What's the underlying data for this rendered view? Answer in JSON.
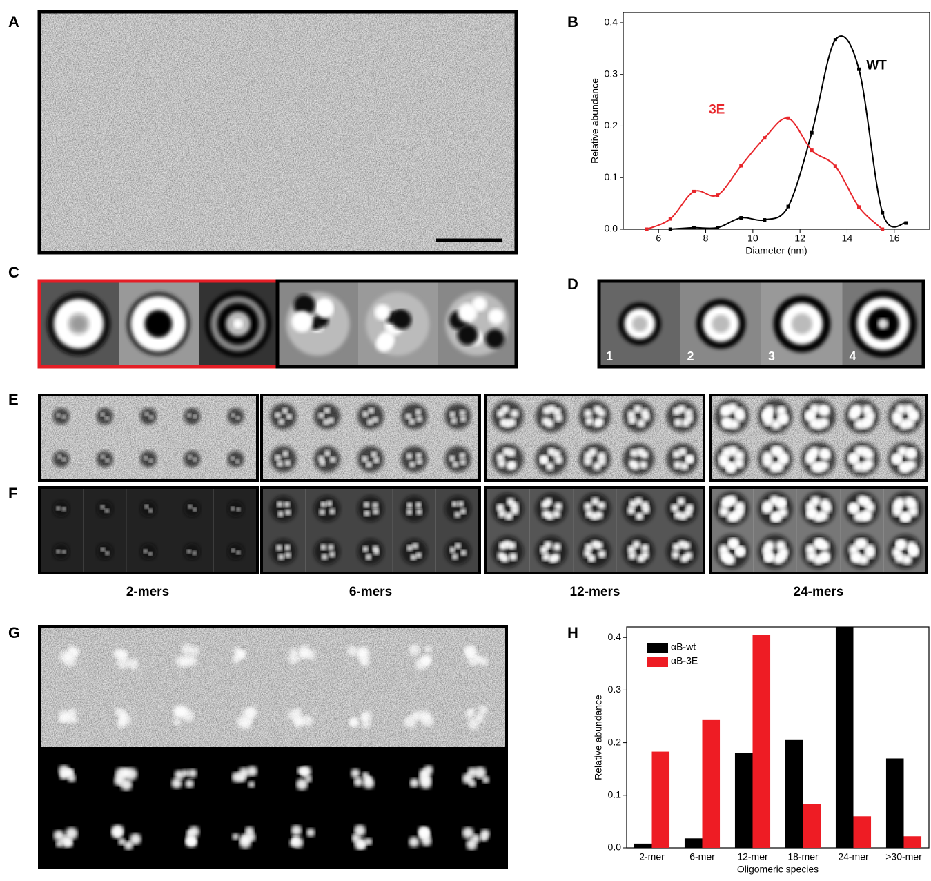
{
  "panel_labels": [
    "A",
    "B",
    "C",
    "D",
    "E",
    "F",
    "G",
    "H"
  ],
  "class_numbers": [
    "1",
    "2",
    "3",
    "4"
  ],
  "oligomer_labels": [
    "2-mers",
    "6-mers",
    "12-mers",
    "24-mers"
  ],
  "chart_data": [
    {
      "type": "line",
      "x_label": "Diameter (nm)",
      "y_label": "Relative abundance",
      "x": [
        5.5,
        6.5,
        7.5,
        8.5,
        9.5,
        10.5,
        11.5,
        12.5,
        13.5,
        14.5,
        15.5,
        16.5
      ],
      "series": [
        {
          "name": "WT",
          "color": "#000000",
          "values": [
            null,
            0,
            0.003,
            0.003,
            0.022,
            0.018,
            0.044,
            0.187,
            0.367,
            0.31,
            0.032,
            0.012
          ]
        },
        {
          "name": "3E",
          "color": "#e8262b",
          "values": [
            0,
            0.02,
            0.073,
            0.066,
            0.123,
            0.177,
            0.215,
            0.153,
            0.122,
            0.043,
            0,
            null
          ]
        }
      ],
      "xlim": [
        4.5,
        17.5
      ],
      "ylim": [
        0,
        0.42
      ],
      "xticks": [
        6,
        8,
        10,
        12,
        14,
        16
      ],
      "yticks": [
        {
          "value": 0,
          "label": "0.0"
        },
        0.1,
        0.2,
        0.3,
        0.4
      ]
    },
    {
      "type": "bar",
      "x_label": "Oligomeric species",
      "y_label": "Relative abundance",
      "categories": [
        "2-mer",
        "6-mer",
        "12-mer",
        "18-mer",
        "24-mer",
        ">30-mer"
      ],
      "series": [
        {
          "name": "αB-wt",
          "color": "#000000",
          "values": [
            0.008,
            0.018,
            0.18,
            0.205,
            0.42,
            0.17
          ]
        },
        {
          "name": "αB-3E",
          "color": "#ee1c24",
          "values": [
            0.183,
            0.243,
            0.405,
            0.083,
            0.06,
            0.022
          ]
        }
      ],
      "ylim": [
        0,
        0.42
      ],
      "yticks": [
        {
          "value": 0,
          "label": "0.0"
        },
        0.1,
        0.2,
        0.3,
        0.4
      ],
      "legend": "upper-left"
    }
  ]
}
